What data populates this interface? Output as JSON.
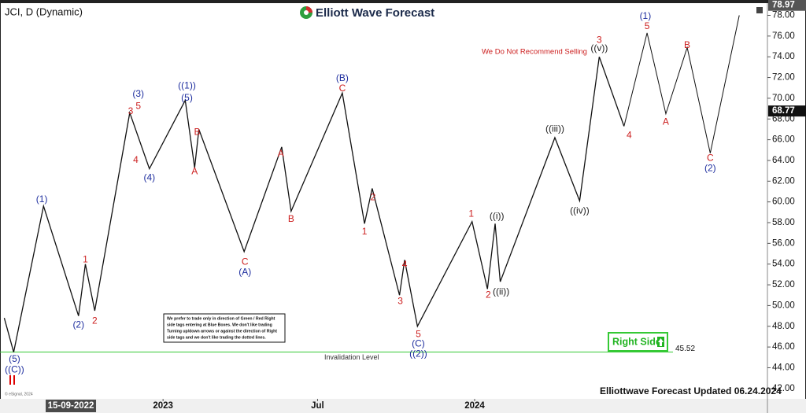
{
  "chart_data": {
    "type": "line",
    "title": "JCI, D (Dynamic)",
    "logo": "Elliott Wave Forecast",
    "note": "We Do Not Recommend Selling",
    "info_box": [
      "We prefer to trade only in direction of Green / Red Right",
      "side tags entering at Blue Boxes. We don't like trading",
      "Turning up/down arrows or against the direction of Right",
      "side tags and we don't like trading the dotted lines."
    ],
    "right_side": "Right Side",
    "footer": "Elliottwave Forecast Updated 06.24.2024",
    "copyright": "© eSignal, 2024",
    "invalidation": {
      "label": "Invalidation Level",
      "value": 45.52,
      "color": "#35c935"
    },
    "high_price": 78.97,
    "last_price": 68.77,
    "cursor": {
      "value": "2022-09-15",
      "label": "15-09-2022"
    },
    "xlim": [
      "2022-06-24",
      "2024-12-09"
    ],
    "ylim": [
      41.0,
      79.1
    ],
    "xticks": [
      {
        "value": "2023-01",
        "label": "2023"
      },
      {
        "value": "2023-07",
        "label": "Jul"
      },
      {
        "value": "2024-01",
        "label": "2024"
      }
    ],
    "yticks": [
      {
        "value": 42,
        "label": "42.00"
      },
      {
        "value": 44,
        "label": "44.00"
      },
      {
        "value": 46,
        "label": "46.00"
      },
      {
        "value": 48,
        "label": "48.00"
      },
      {
        "value": 50,
        "label": "50.00"
      },
      {
        "value": 52,
        "label": "52.00"
      },
      {
        "value": 54,
        "label": "54.00"
      },
      {
        "value": 56,
        "label": "56.00"
      },
      {
        "value": 58,
        "label": "58.00"
      },
      {
        "value": 60,
        "label": "60.00"
      },
      {
        "value": 62,
        "label": "62.00"
      },
      {
        "value": 64,
        "label": "64.00"
      },
      {
        "value": 66,
        "label": "66.00"
      },
      {
        "value": 68,
        "label": "68.00"
      },
      {
        "value": 70,
        "label": "70.00"
      },
      {
        "value": 72,
        "label": "72.00"
      },
      {
        "value": 74,
        "label": "74.00"
      },
      {
        "value": 76,
        "label": "76.00"
      },
      {
        "value": 78,
        "label": "78.00"
      }
    ],
    "series": [
      {
        "color": "#111111",
        "x": [
          "2022-06-29",
          "2022-07-10",
          "2022-08-14",
          "2022-09-24",
          "2022-10-02",
          "2022-10-13",
          "2022-11-23",
          "2022-12-16",
          "2023-01-27",
          "2023-02-07",
          "2023-02-12",
          "2023-04-06",
          "2023-05-20",
          "2023-05-31",
          "2023-07-30",
          "2023-08-25",
          "2023-09-03",
          "2023-10-05",
          "2023-10-11",
          "2023-10-26",
          "2023-12-29",
          "2024-01-16",
          "2024-01-25",
          "2024-01-31",
          "2024-04-04",
          "2024-05-03",
          "2024-05-26",
          "2024-06-24"
        ],
        "values": [
          48.8,
          45.5,
          59.6,
          49.0,
          54.0,
          49.5,
          68.6,
          63.2,
          69.8,
          63.3,
          67.0,
          55.2,
          65.3,
          59.1,
          70.5,
          57.9,
          61.3,
          51.0,
          54.4,
          48.0,
          58.1,
          51.6,
          57.9,
          52.3,
          66.2,
          60.1,
          74.0,
          67.3
        ]
      },
      {
        "color": "#111111",
        "x": [
          "2024-06-24",
          "2024-07-21",
          "2024-08-12",
          "2024-09-06",
          "2024-10-03",
          "2024-11-06"
        ],
        "values": [
          67.3,
          76.3,
          68.5,
          74.9,
          64.7,
          78.0
        ]
      }
    ],
    "labels": [
      {
        "text": "(5)",
        "color": "#1f2f9f",
        "x": "2022-07-11",
        "y": 44.8
      },
      {
        "text": "((C))",
        "color": "#1f2f9f",
        "x": "2022-07-11",
        "y": 43.8
      },
      {
        "text": "(1)",
        "color": "#1f2f9f",
        "x": "2022-08-12",
        "y": 60.2
      },
      {
        "text": "(2)",
        "color": "#1f2f9f",
        "x": "2022-09-24",
        "y": 48.1
      },
      {
        "text": "1",
        "color": "#cc1f1f",
        "x": "2022-10-02",
        "y": 54.4
      },
      {
        "text": "2",
        "color": "#cc1f1f",
        "x": "2022-10-13",
        "y": 48.5
      },
      {
        "text": "3",
        "color": "#cc1f1f",
        "x": "2022-11-24",
        "y": 68.7
      },
      {
        "text": "4",
        "color": "#cc1f1f",
        "x": "2022-11-30",
        "y": 64.0
      },
      {
        "text": "(3)",
        "color": "#1f2f9f",
        "x": "2022-12-03",
        "y": 70.4
      },
      {
        "text": "5",
        "color": "#cc1f1f",
        "x": "2022-12-03",
        "y": 69.2
      },
      {
        "text": "(4)",
        "color": "#1f2f9f",
        "x": "2022-12-16",
        "y": 62.3
      },
      {
        "text": "((1))",
        "color": "#1f2f9f",
        "x": "2023-01-29",
        "y": 71.2
      },
      {
        "text": "(5)",
        "color": "#1f2f9f",
        "x": "2023-01-29",
        "y": 70.0
      },
      {
        "text": "A",
        "color": "#cc1f1f",
        "x": "2023-02-07",
        "y": 62.9
      },
      {
        "text": "B",
        "color": "#cc1f1f",
        "x": "2023-02-10",
        "y": 66.7
      },
      {
        "text": "C",
        "color": "#cc1f1f",
        "x": "2023-04-07",
        "y": 54.2
      },
      {
        "text": "(A)",
        "color": "#1f2f9f",
        "x": "2023-04-07",
        "y": 53.2
      },
      {
        "text": "A",
        "color": "#cc1f1f",
        "x": "2023-05-19",
        "y": 64.6
      },
      {
        "text": "B",
        "color": "#cc1f1f",
        "x": "2023-05-31",
        "y": 58.3
      },
      {
        "text": "(B)",
        "color": "#1f2f9f",
        "x": "2023-07-30",
        "y": 71.9
      },
      {
        "text": "C",
        "color": "#cc1f1f",
        "x": "2023-07-30",
        "y": 70.9
      },
      {
        "text": "1",
        "color": "#cc1f1f",
        "x": "2023-08-25",
        "y": 57.1
      },
      {
        "text": "2",
        "color": "#cc1f1f",
        "x": "2023-09-04",
        "y": 60.4
      },
      {
        "text": "3",
        "color": "#cc1f1f",
        "x": "2023-10-06",
        "y": 50.4
      },
      {
        "text": "4",
        "color": "#cc1f1f",
        "x": "2023-10-11",
        "y": 53.9
      },
      {
        "text": "5",
        "color": "#cc1f1f",
        "x": "2023-10-27",
        "y": 47.2
      },
      {
        "text": "(C)",
        "color": "#1f2f9f",
        "x": "2023-10-27",
        "y": 46.3
      },
      {
        "text": "((2))",
        "color": "#1f2f9f",
        "x": "2023-10-27",
        "y": 45.3
      },
      {
        "text": "1",
        "color": "#cc1f1f",
        "x": "2023-12-28",
        "y": 58.8
      },
      {
        "text": "2",
        "color": "#cc1f1f",
        "x": "2024-01-17",
        "y": 51.0
      },
      {
        "text": "((i))",
        "color": "#222222",
        "x": "2024-01-27",
        "y": 58.6
      },
      {
        "text": "((ii))",
        "color": "#222222",
        "x": "2024-02-01",
        "y": 51.3
      },
      {
        "text": "((iii))",
        "color": "#222222",
        "x": "2024-04-04",
        "y": 67.0
      },
      {
        "text": "((iv))",
        "color": "#222222",
        "x": "2024-05-03",
        "y": 59.1
      },
      {
        "text": "3",
        "color": "#cc1f1f",
        "x": "2024-05-26",
        "y": 75.6
      },
      {
        "text": "((v))",
        "color": "#222222",
        "x": "2024-05-26",
        "y": 74.8
      },
      {
        "text": "4",
        "color": "#cc1f1f",
        "x": "2024-06-30",
        "y": 66.4
      },
      {
        "text": "(1)",
        "color": "#1f2f9f",
        "x": "2024-07-19",
        "y": 77.9
      },
      {
        "text": "5",
        "color": "#cc1f1f",
        "x": "2024-07-21",
        "y": 76.9
      },
      {
        "text": "A",
        "color": "#cc1f1f",
        "x": "2024-08-12",
        "y": 67.7
      },
      {
        "text": "B",
        "color": "#cc1f1f",
        "x": "2024-09-06",
        "y": 75.1
      },
      {
        "text": "C",
        "color": "#cc1f1f",
        "x": "2024-10-03",
        "y": 64.2
      },
      {
        "text": "(2)",
        "color": "#1f2f9f",
        "x": "2024-10-03",
        "y": 63.2
      }
    ]
  }
}
